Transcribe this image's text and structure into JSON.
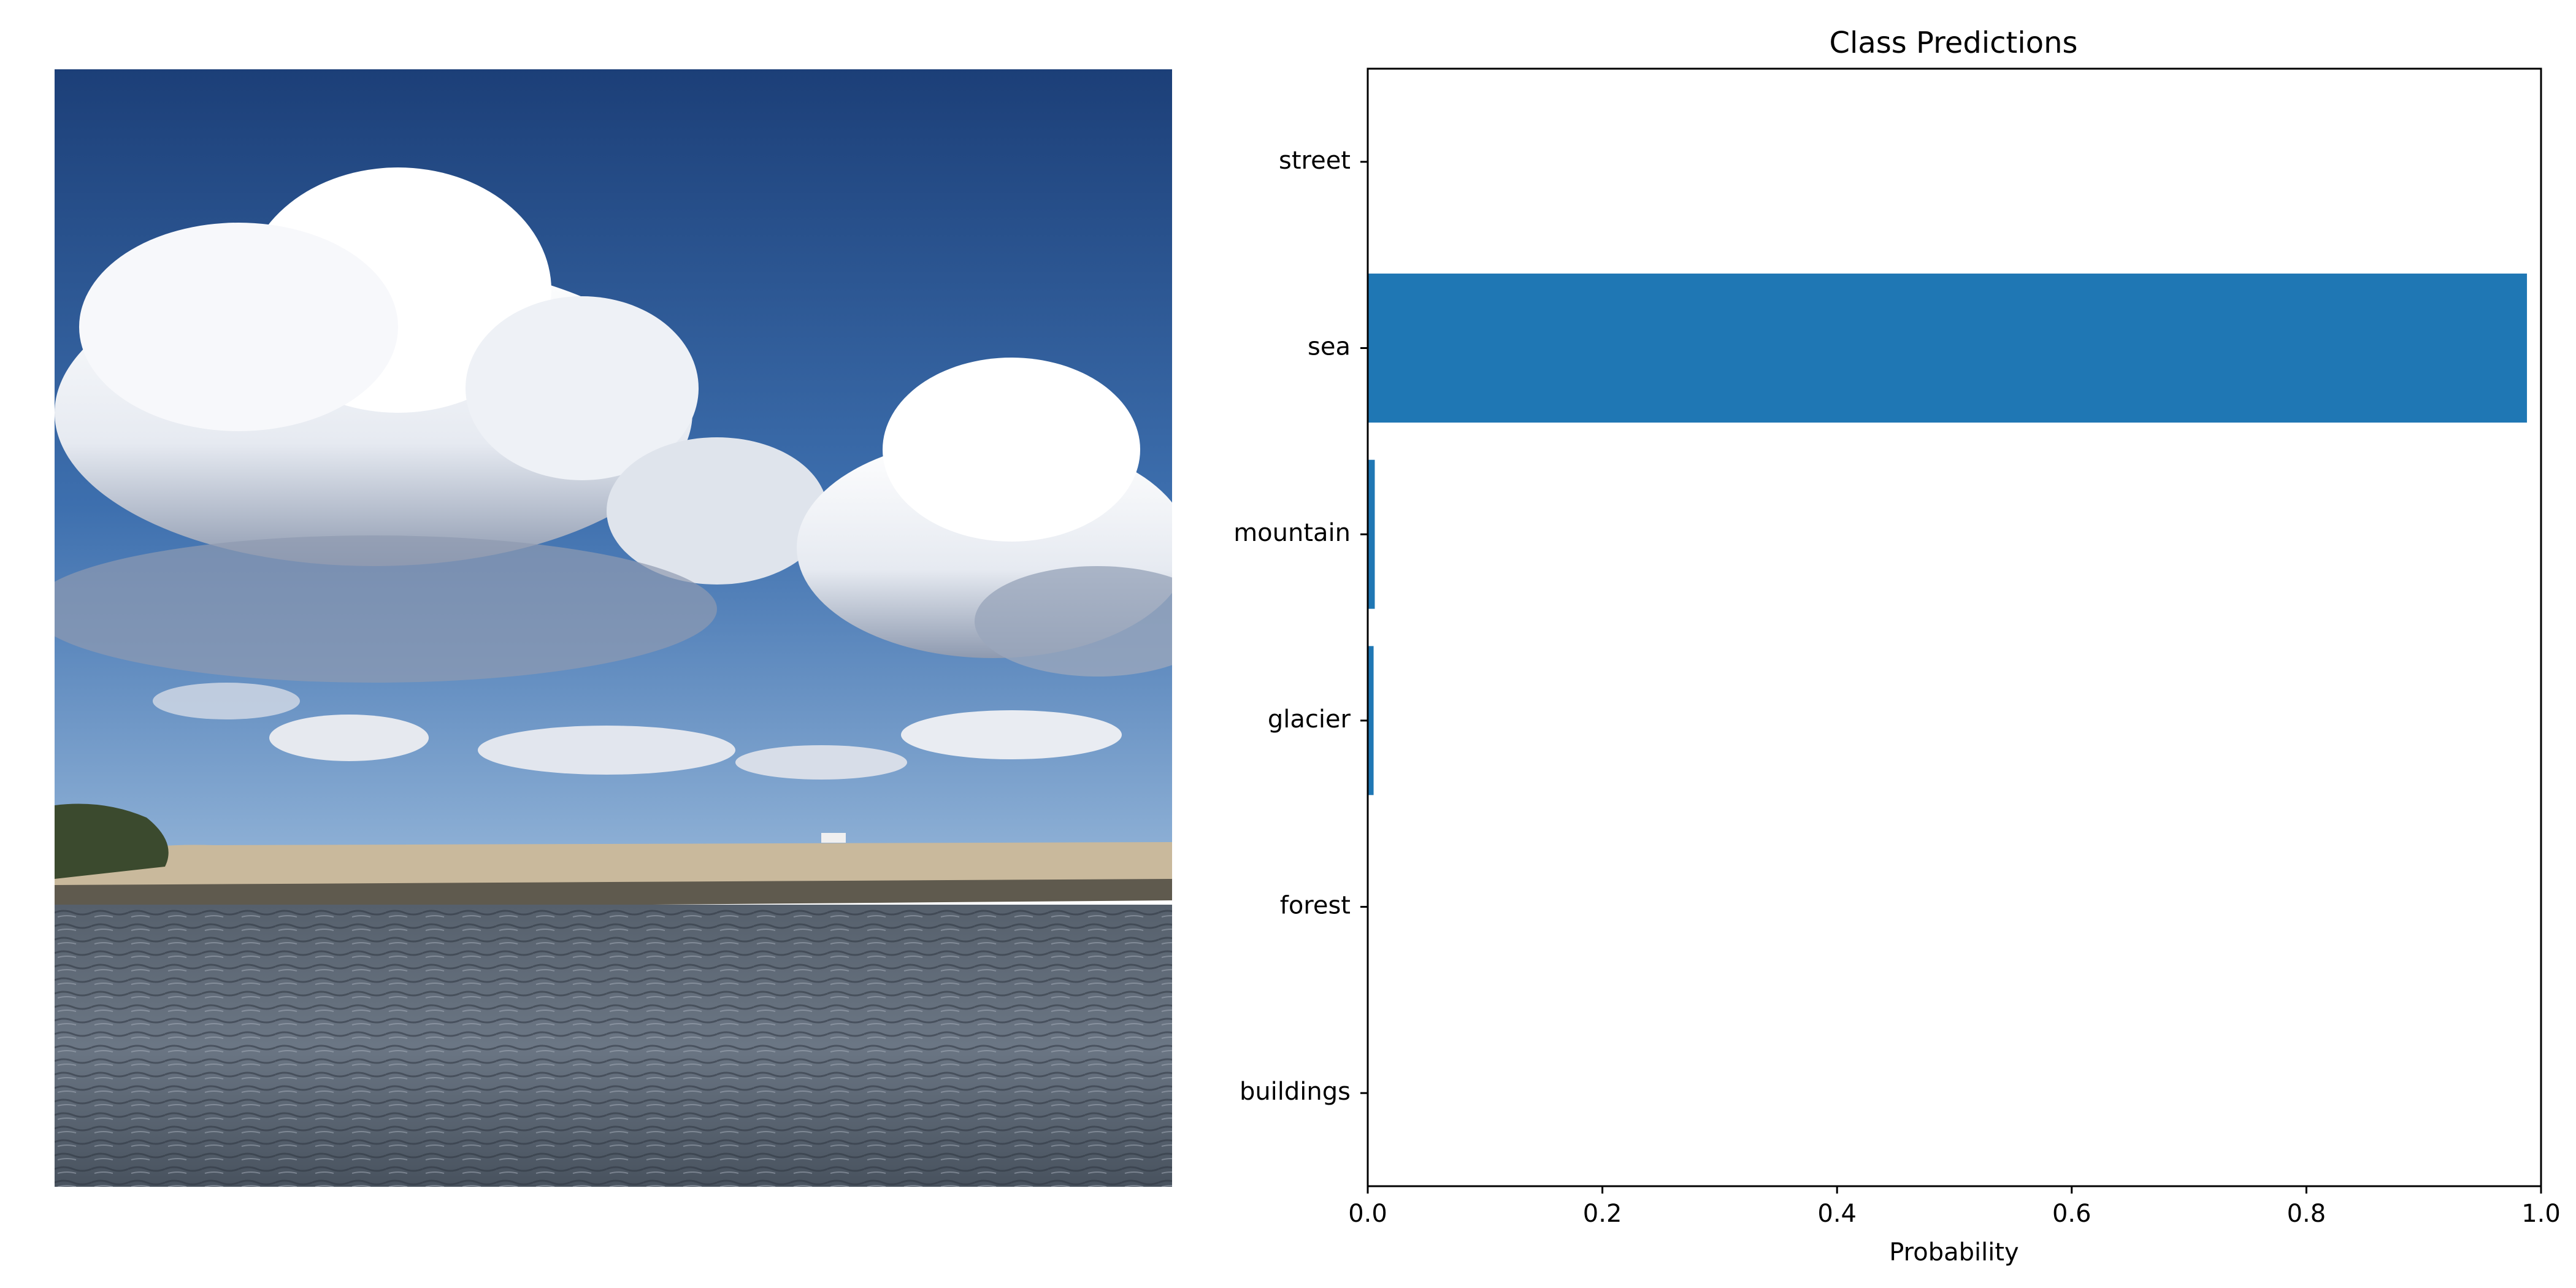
{
  "photo": {
    "subject": "coastal-sea-and-clouds",
    "colors": {
      "sky_top": "#1c3f78",
      "sky_mid": "#3d6fae",
      "sky_horizon": "#8fb1d6",
      "cloud": "#f4f6f9",
      "cloud_shadow": "#9aa6bb",
      "shore": "#c9b99c",
      "shore_dark": "#5f5a4e",
      "bush": "#3b4a2e",
      "water": "#6b7684",
      "water_dark": "#3f4852"
    }
  },
  "chart_data": {
    "type": "bar",
    "orientation": "horizontal",
    "title": "Class Predictions",
    "xlabel": "Probability",
    "ylabel": "",
    "categories": [
      "buildings",
      "forest",
      "glacier",
      "mountain",
      "sea",
      "street"
    ],
    "values": [
      0.0001,
      0.0002,
      0.005,
      0.006,
      0.988,
      0.0003
    ],
    "xlim": [
      0,
      1
    ],
    "xticks": [
      "0.0",
      "0.2",
      "0.4",
      "0.6",
      "0.8",
      "1.0"
    ],
    "bar_color": "#1f77b4",
    "grid": false
  }
}
